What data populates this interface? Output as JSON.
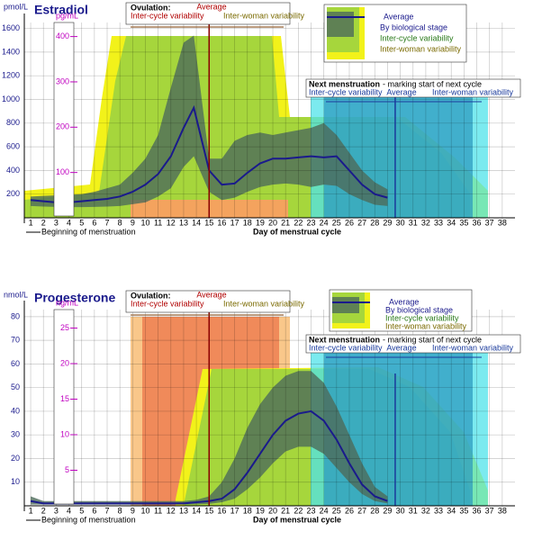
{
  "chart_data": [
    {
      "type": "line",
      "title": "Estradiol",
      "y_label": "pmol/L",
      "y2_label": "pg/mL",
      "x_label": "Day of menstrual cycle",
      "start_label": "Beginning of menstruation",
      "xlim": [
        0.5,
        39
      ],
      "xticks": [
        1,
        2,
        3,
        4,
        5,
        6,
        7,
        8,
        9,
        10,
        11,
        12,
        13,
        14,
        15,
        16,
        17,
        18,
        19,
        20,
        21,
        22,
        23,
        24,
        25,
        26,
        27,
        28,
        29,
        30,
        31,
        32,
        33,
        34,
        35,
        36,
        37,
        38
      ],
      "ylim": [
        0,
        1650
      ],
      "yticks": [
        200,
        400,
        600,
        800,
        1000,
        1200,
        1400,
        1600
      ],
      "y2lim": [
        0,
        431
      ],
      "y2ticks": [
        100,
        200,
        300,
        400
      ],
      "grid": true,
      "x": [
        1,
        2,
        3,
        4,
        5,
        6,
        7,
        8,
        9,
        10,
        11,
        12,
        13,
        13.8,
        15,
        16,
        17,
        18,
        19,
        20,
        21,
        22,
        23,
        24,
        25,
        26,
        27,
        28,
        29
      ],
      "series": [
        {
          "name": "Average",
          "color": "#1a1a8c",
          "values": [
            150,
            140,
            130,
            130,
            140,
            150,
            160,
            180,
            220,
            280,
            370,
            520,
            760,
            930,
            400,
            280,
            290,
            380,
            460,
            500,
            500,
            510,
            520,
            510,
            520,
            400,
            280,
            200,
            170
          ]
        },
        {
          "name": "By biological stage",
          "color": "#4d6b5a",
          "upper": [
            180,
            185,
            190,
            195,
            200,
            220,
            250,
            280,
            380,
            500,
            700,
            1100,
            1480,
            1540,
            500,
            500,
            650,
            700,
            720,
            700,
            720,
            740,
            760,
            800,
            700,
            550,
            400,
            300,
            240
          ],
          "lower": [
            100,
            95,
            92,
            90,
            90,
            92,
            95,
            100,
            115,
            130,
            180,
            250,
            430,
            520,
            220,
            150,
            170,
            220,
            260,
            280,
            290,
            280,
            260,
            280,
            270,
            200,
            150,
            110,
            100
          ]
        }
      ],
      "legend_extra": [
        "Inter-cycle variability",
        "Inter-woman variability"
      ],
      "ovulation_day": 15,
      "next_day": 29.6,
      "ovulation": {
        "title": "Ovulation:",
        "average": "Average",
        "inter_cycle": "Inter-cycle variability",
        "inter_woman": "Inter-woman variability"
      },
      "next": {
        "title": "Next menstruation",
        "subtitle": " - marking start of next cycle",
        "inter_cycle": "Inter-cycle variability",
        "average": "Average",
        "inter_woman": "Inter-woman variability"
      }
    },
    {
      "type": "line",
      "title": "Progesterone",
      "y_label": "nmol/L",
      "y2_label": "ng/mL",
      "x_label": "Day of menstrual cycle",
      "start_label": "Beginning of menstruation",
      "xlim": [
        0.5,
        39
      ],
      "xticks": [
        1,
        2,
        3,
        4,
        5,
        6,
        7,
        8,
        9,
        10,
        11,
        12,
        13,
        14,
        15,
        16,
        17,
        18,
        19,
        20,
        21,
        22,
        23,
        24,
        25,
        26,
        27,
        28,
        29,
        30,
        31,
        32,
        33,
        34,
        35,
        36,
        37,
        38
      ],
      "ylim": [
        0,
        83
      ],
      "yticks": [
        10,
        20,
        30,
        40,
        50,
        60,
        70,
        80
      ],
      "y2lim": [
        0,
        27.6
      ],
      "y2ticks": [
        5,
        10,
        15,
        20,
        25
      ],
      "grid": true,
      "x": [
        1,
        2,
        3,
        4,
        5,
        6,
        7,
        8,
        9,
        10,
        11,
        12,
        13,
        14,
        15,
        16,
        17,
        18,
        19,
        20,
        21,
        22,
        23,
        24,
        25,
        26,
        27,
        28,
        29
      ],
      "series": [
        {
          "name": "Average",
          "color": "#1a1a8c",
          "values": [
            2,
            1,
            1,
            1,
            1,
            1,
            1,
            1,
            1,
            1,
            1,
            1,
            1,
            1.5,
            2,
            3,
            7,
            14,
            22,
            30,
            36,
            39,
            40,
            36,
            28,
            18,
            9,
            4,
            2
          ]
        },
        {
          "name": "By biological stage",
          "color": "#4d6b5a",
          "upper": [
            4,
            2,
            2,
            2,
            2,
            2,
            2,
            2,
            2,
            2,
            2,
            2,
            2,
            2.5,
            4,
            10,
            20,
            33,
            43,
            50,
            55,
            57,
            57,
            52,
            42,
            30,
            18,
            8,
            4
          ],
          "lower": [
            0.5,
            0.5,
            0.5,
            0.5,
            0.5,
            0.5,
            0.5,
            0.5,
            0.5,
            0.5,
            0.5,
            0.5,
            0.5,
            0.6,
            0.8,
            1.5,
            3,
            7,
            12,
            18,
            23,
            25,
            25,
            22,
            16,
            10,
            5,
            2,
            1
          ]
        }
      ],
      "legend_extra": [
        "Inter-cycle variability",
        "Inter-woman variability"
      ],
      "ovulation_day": 15,
      "next_day": 29.6,
      "ovulation": {
        "title": "Ovulation:",
        "average": "Average",
        "inter_cycle": "Inter-cycle variability",
        "inter_woman": "Inter-woman variability"
      },
      "next": {
        "title": "Next menstruation",
        "subtitle": " - marking start of next cycle",
        "inter_cycle": "Inter-cycle variability",
        "average": "Average",
        "inter_woman": "Inter-woman variability"
      }
    }
  ]
}
